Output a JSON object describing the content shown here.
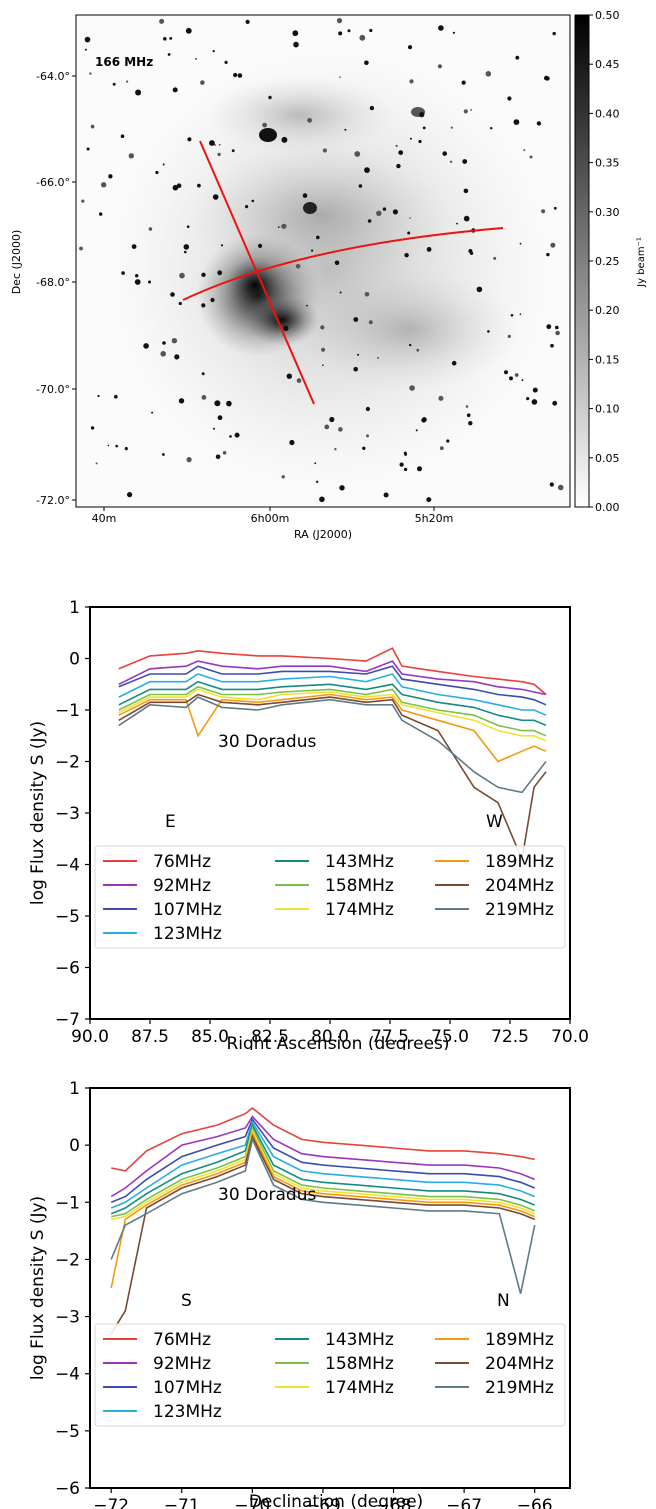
{
  "colors": {
    "76MHz": "#e8403b",
    "92MHz": "#9b35c0",
    "107MHz": "#3d4bb0",
    "123MHz": "#27aee3",
    "143MHz": "#148c84",
    "158MHz": "#7cc04a",
    "174MHz": "#f2e232",
    "189MHz": "#f59a10",
    "204MHz": "#7a4a33",
    "219MHz": "#5f7b85",
    "cut_lines": "#ee1111"
  },
  "map": {
    "label": "166 MHz",
    "xlabel": "RA (J2000)",
    "ylabel": "Dec (J2000)",
    "x_ticks": [
      "40m",
      "6h00m",
      "5h20m"
    ],
    "y_ticks": [
      "-64.0°",
      "-66.0°",
      "-68.0°",
      "-70.0°",
      "-72.0°"
    ],
    "colorbar": {
      "label": "Jy beam⁻¹",
      "ticks": [
        "0.50",
        "0.45",
        "0.40",
        "0.35",
        "0.30",
        "0.25",
        "0.20",
        "0.15",
        "0.10",
        "0.05",
        "0.00"
      ]
    }
  },
  "chart_data": [
    {
      "type": "line",
      "xlabel": "Right Ascension (degrees)",
      "ylabel": "log Flux density S (Jy)",
      "xlim": [
        90,
        70
      ],
      "ylim": [
        -7,
        1
      ],
      "x_ticks": [
        "90.0",
        "87.5",
        "85.0",
        "82.5",
        "80.0",
        "77.5",
        "75.0",
        "72.5",
        "70.0"
      ],
      "y_ticks": [
        "1",
        "0",
        "−1",
        "−2",
        "−3",
        "−4",
        "−5",
        "−6",
        "−7"
      ],
      "annotations": [
        "30 Doradus",
        "E",
        "W"
      ],
      "x": [
        88.8,
        87.5,
        86.0,
        85.5,
        84.5,
        83.0,
        82.0,
        80.0,
        78.5,
        77.4,
        77.0,
        75.5,
        74.0,
        73.0,
        72.0,
        71.5,
        71.0
      ],
      "series": [
        {
          "name": "76MHz",
          "values": [
            -0.2,
            0.05,
            0.1,
            0.15,
            0.1,
            0.05,
            0.05,
            0.0,
            -0.05,
            0.2,
            -0.15,
            -0.25,
            -0.35,
            -0.4,
            -0.45,
            -0.5,
            -0.7
          ]
        },
        {
          "name": "92MHz",
          "values": [
            -0.5,
            -0.2,
            -0.15,
            -0.05,
            -0.15,
            -0.2,
            -0.15,
            -0.15,
            -0.25,
            -0.05,
            -0.3,
            -0.4,
            -0.45,
            -0.55,
            -0.6,
            -0.65,
            -0.7
          ]
        },
        {
          "name": "107MHz",
          "values": [
            -0.55,
            -0.3,
            -0.3,
            -0.15,
            -0.3,
            -0.3,
            -0.25,
            -0.25,
            -0.3,
            -0.15,
            -0.4,
            -0.5,
            -0.6,
            -0.7,
            -0.75,
            -0.8,
            -0.9
          ]
        },
        {
          "name": "123MHz",
          "values": [
            -0.75,
            -0.45,
            -0.45,
            -0.3,
            -0.45,
            -0.45,
            -0.4,
            -0.35,
            -0.45,
            -0.3,
            -0.55,
            -0.7,
            -0.8,
            -0.9,
            -1.0,
            -1.0,
            -1.1
          ]
        },
        {
          "name": "143MHz",
          "values": [
            -0.9,
            -0.6,
            -0.6,
            -0.45,
            -0.6,
            -0.6,
            -0.55,
            -0.5,
            -0.6,
            -0.5,
            -0.7,
            -0.85,
            -0.95,
            -1.1,
            -1.2,
            -1.2,
            -1.3
          ]
        },
        {
          "name": "158MHz",
          "values": [
            -1.0,
            -0.7,
            -0.7,
            -0.55,
            -0.7,
            -0.7,
            -0.65,
            -0.6,
            -0.7,
            -0.6,
            -0.85,
            -1.0,
            -1.1,
            -1.3,
            -1.4,
            -1.4,
            -1.5
          ]
        },
        {
          "name": "174MHz",
          "values": [
            -1.05,
            -0.75,
            -0.75,
            -0.6,
            -0.75,
            -0.8,
            -0.7,
            -0.65,
            -0.75,
            -0.7,
            -0.9,
            -1.05,
            -1.2,
            -1.4,
            -1.5,
            -1.5,
            -1.6
          ]
        },
        {
          "name": "189MHz",
          "values": [
            -1.1,
            -0.8,
            -0.8,
            -1.5,
            -0.8,
            -0.85,
            -0.8,
            -0.7,
            -0.8,
            -0.75,
            -1.0,
            -1.2,
            -1.4,
            -2.0,
            -1.8,
            -1.7,
            -1.8
          ]
        },
        {
          "name": "204MHz",
          "values": [
            -1.2,
            -0.85,
            -0.85,
            -0.7,
            -0.85,
            -0.9,
            -0.85,
            -0.75,
            -0.85,
            -0.8,
            -1.1,
            -1.4,
            -2.5,
            -2.8,
            -3.9,
            -2.5,
            -2.2
          ]
        },
        {
          "name": "219MHz",
          "values": [
            -1.3,
            -0.9,
            -0.95,
            -0.75,
            -0.95,
            -1.0,
            -0.9,
            -0.8,
            -0.9,
            -0.9,
            -1.2,
            -1.6,
            -2.2,
            -2.5,
            -2.6,
            -2.3,
            -2.0
          ]
        }
      ]
    },
    {
      "type": "line",
      "xlabel": "Declination (degree)",
      "ylabel": "log Flux density S (Jy)",
      "xlim": [
        -72.3,
        -65.5
      ],
      "ylim": [
        -6,
        1
      ],
      "x_ticks": [
        "−72",
        "−71",
        "−70",
        "−69",
        "−68",
        "−67",
        "−66"
      ],
      "y_ticks": [
        "1",
        "0",
        "−1",
        "−2",
        "−3",
        "−4",
        "−5",
        "−6"
      ],
      "annotations": [
        "30 Doradus",
        "S",
        "N"
      ],
      "x": [
        -72.0,
        -71.8,
        -71.5,
        -71.0,
        -70.5,
        -70.1,
        -70.0,
        -69.7,
        -69.3,
        -69.0,
        -68.5,
        -68.0,
        -67.5,
        -67.0,
        -66.5,
        -66.2,
        -66.0
      ],
      "series": [
        {
          "name": "76MHz",
          "values": [
            -0.4,
            -0.45,
            -0.1,
            0.2,
            0.35,
            0.55,
            0.65,
            0.35,
            0.1,
            0.05,
            0.0,
            -0.05,
            -0.1,
            -0.1,
            -0.15,
            -0.2,
            -0.25
          ]
        },
        {
          "name": "92MHz",
          "values": [
            -0.9,
            -0.75,
            -0.45,
            0.0,
            0.15,
            0.3,
            0.5,
            0.1,
            -0.15,
            -0.2,
            -0.25,
            -0.3,
            -0.35,
            -0.35,
            -0.4,
            -0.5,
            -0.6
          ]
        },
        {
          "name": "107MHz",
          "values": [
            -1.0,
            -0.9,
            -0.6,
            -0.2,
            0.0,
            0.15,
            0.45,
            -0.05,
            -0.3,
            -0.35,
            -0.4,
            -0.45,
            -0.5,
            -0.5,
            -0.55,
            -0.65,
            -0.75
          ]
        },
        {
          "name": "123MHz",
          "values": [
            -1.1,
            -1.0,
            -0.75,
            -0.35,
            -0.15,
            0.0,
            0.4,
            -0.2,
            -0.45,
            -0.5,
            -0.55,
            -0.6,
            -0.65,
            -0.65,
            -0.7,
            -0.8,
            -0.9
          ]
        },
        {
          "name": "143MHz",
          "values": [
            -1.2,
            -1.1,
            -0.85,
            -0.5,
            -0.3,
            -0.1,
            0.35,
            -0.35,
            -0.6,
            -0.65,
            -0.7,
            -0.75,
            -0.8,
            -0.8,
            -0.85,
            -0.95,
            -1.05
          ]
        },
        {
          "name": "158MHz",
          "values": [
            -1.25,
            -1.2,
            -0.95,
            -0.6,
            -0.4,
            -0.2,
            0.3,
            -0.45,
            -0.7,
            -0.75,
            -0.8,
            -0.85,
            -0.9,
            -0.9,
            -0.95,
            -1.05,
            -1.15
          ]
        },
        {
          "name": "174MHz",
          "values": [
            -1.3,
            -1.25,
            -1.0,
            -0.65,
            -0.45,
            -0.25,
            0.25,
            -0.5,
            -0.75,
            -0.8,
            -0.85,
            -0.9,
            -0.95,
            -0.95,
            -1.0,
            -1.1,
            -1.2
          ]
        },
        {
          "name": "189MHz",
          "values": [
            -2.5,
            -1.3,
            -1.05,
            -0.7,
            -0.5,
            -0.3,
            0.2,
            -0.55,
            -0.8,
            -0.85,
            -0.9,
            -0.95,
            -1.0,
            -1.0,
            -1.05,
            -1.15,
            -1.25
          ]
        },
        {
          "name": "204MHz",
          "values": [
            -3.3,
            -2.9,
            -1.1,
            -0.75,
            -0.55,
            -0.35,
            0.15,
            -0.6,
            -0.85,
            -0.9,
            -0.95,
            -1.0,
            -1.05,
            -1.05,
            -1.1,
            -1.2,
            -1.3
          ]
        },
        {
          "name": "219MHz",
          "values": [
            -2.0,
            -1.4,
            -1.2,
            -0.85,
            -0.65,
            -0.45,
            0.1,
            -0.7,
            -0.95,
            -1.0,
            -1.05,
            -1.1,
            -1.15,
            -1.15,
            -1.2,
            -2.6,
            -1.4
          ]
        }
      ]
    }
  ]
}
